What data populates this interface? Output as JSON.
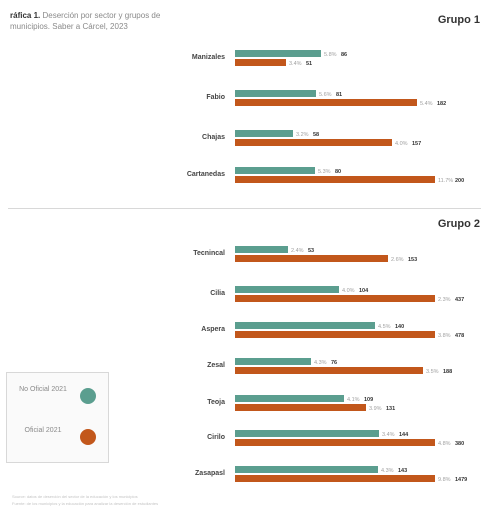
{
  "title": {
    "lead": "ráfica 1.",
    "text": "Deserción por sector y grupos de municipios. Saber a Cárcel, 2023"
  },
  "groups": [
    "Grupo 1",
    "Grupo 2"
  ],
  "legend": [
    {
      "label": "No Oficial 2021",
      "color": "#5b9e8f"
    },
    {
      "label": "Oficial 2021",
      "color": "#c2571b"
    }
  ],
  "source": [
    "Source: datos de deserción del sector de la educación y los municipios",
    "Fuente: de los municipios y la educación para analizar la deserción de estudiantes"
  ],
  "colors": {
    "no_oficial": "#5b9e8f",
    "oficial": "#c2571b"
  },
  "chart_data": {
    "type": "bar",
    "orientation": "horizontal",
    "xlim": [
      0,
      1479
    ],
    "groups": [
      {
        "name": "Grupo 1",
        "categories": [
          "Manizales",
          "Fabio",
          "Chajas",
          "Cartanedas"
        ],
        "series": [
          {
            "name": "No Oficial 2021",
            "values": [
              86,
              81,
              58,
              80
            ],
            "percent_labels": [
              "5.8%",
              "5.6%",
              "3.2%",
              "5.3%"
            ]
          },
          {
            "name": "Oficial 2021",
            "values": [
              51,
              182,
              157,
              200
            ],
            "percent_labels": [
              "3.4%",
              "5.4%",
              "4.0%",
              "11.7%"
            ]
          }
        ]
      },
      {
        "name": "Grupo 2",
        "categories": [
          "Tecnincal",
          "Cilia",
          "Aspera",
          "Zesal",
          "Teoja",
          "Cirilo",
          "Zasapasl"
        ],
        "series": [
          {
            "name": "No Oficial 2021",
            "values": [
              53,
              104,
              140,
              76,
              109,
              144,
              143
            ],
            "percent_labels": [
              "2.4%",
              "4.0%",
              "4.5%",
              "4.3%",
              "4.1%",
              "3.4%",
              "4.3%"
            ]
          },
          {
            "name": "Oficial 2021",
            "values": [
              153,
              437,
              478,
              188,
              131,
              380,
              1479
            ],
            "percent_labels": [
              "2.6%",
              "2.3%",
              "3.8%",
              "3.5%",
              "3.9%",
              "4.8%",
              "9.8%"
            ]
          }
        ]
      }
    ]
  }
}
